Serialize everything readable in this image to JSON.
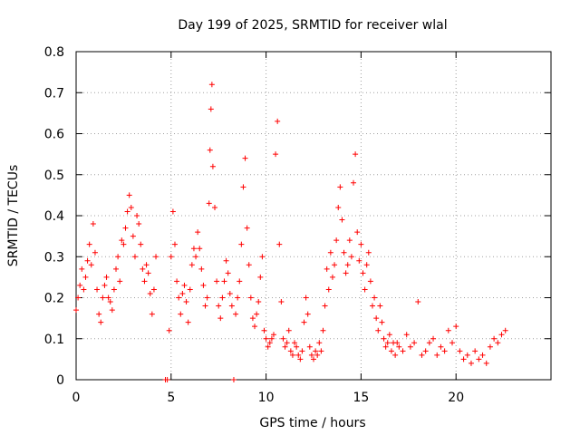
{
  "chart_data": {
    "type": "scatter",
    "title": "Day 199 of 2025, SRMTID for receiver wlal",
    "xlabel": "GPS time / hours",
    "ylabel": "SRMTID / TECUs",
    "xlim": [
      0,
      25
    ],
    "ylim": [
      0,
      0.8
    ],
    "xticks": [
      0,
      5,
      10,
      15,
      20
    ],
    "yticks": [
      0,
      0.1,
      0.2,
      0.3,
      0.4,
      0.5,
      0.6,
      0.7,
      0.8
    ],
    "x_tick_labels": [
      "0",
      "5",
      "10",
      "15",
      "20"
    ],
    "y_tick_labels": [
      "0",
      "0.1",
      "0.2",
      "0.3",
      "0.4",
      "0.5",
      "0.6",
      "0.7",
      "0.8"
    ],
    "grid": true,
    "marker": "+",
    "color": "#ff0000",
    "series": [
      {
        "name": "SRMTID",
        "x": [
          0.0,
          0.1,
          0.2,
          0.3,
          0.4,
          0.5,
          0.6,
          0.7,
          0.8,
          0.9,
          1.0,
          1.1,
          1.2,
          1.3,
          1.4,
          1.5,
          1.6,
          1.7,
          1.8,
          1.9,
          2.0,
          2.1,
          2.2,
          2.3,
          2.4,
          2.5,
          2.6,
          2.7,
          2.8,
          2.9,
          3.0,
          3.1,
          3.2,
          3.3,
          3.4,
          3.5,
          3.6,
          3.7,
          3.8,
          3.9,
          4.0,
          4.1,
          4.2,
          4.7,
          4.8,
          4.9,
          5.0,
          5.1,
          5.2,
          5.3,
          5.4,
          5.5,
          5.6,
          5.7,
          5.8,
          5.9,
          6.0,
          6.1,
          6.2,
          6.3,
          6.4,
          6.5,
          6.6,
          6.7,
          6.8,
          6.9,
          7.0,
          7.05,
          7.1,
          7.15,
          7.2,
          7.3,
          7.4,
          7.5,
          7.6,
          7.7,
          7.8,
          7.9,
          8.0,
          8.1,
          8.2,
          8.3,
          8.4,
          8.5,
          8.6,
          8.7,
          8.8,
          8.9,
          9.0,
          9.1,
          9.2,
          9.3,
          9.4,
          9.5,
          9.6,
          9.7,
          9.8,
          9.9,
          10.0,
          10.1,
          10.2,
          10.3,
          10.4,
          10.5,
          10.6,
          10.7,
          10.8,
          10.9,
          11.0,
          11.1,
          11.2,
          11.3,
          11.4,
          11.5,
          11.6,
          11.7,
          11.8,
          11.9,
          12.0,
          12.1,
          12.2,
          12.3,
          12.4,
          12.5,
          12.6,
          12.7,
          12.8,
          12.9,
          13.0,
          13.1,
          13.2,
          13.3,
          13.4,
          13.5,
          13.6,
          13.7,
          13.8,
          13.9,
          14.0,
          14.1,
          14.2,
          14.3,
          14.4,
          14.5,
          14.6,
          14.7,
          14.8,
          14.9,
          15.0,
          15.1,
          15.2,
          15.3,
          15.4,
          15.5,
          15.6,
          15.7,
          15.8,
          15.9,
          16.0,
          16.1,
          16.2,
          16.3,
          16.4,
          16.5,
          16.6,
          16.7,
          16.8,
          16.9,
          17.0,
          17.2,
          17.4,
          17.6,
          17.8,
          18.0,
          18.2,
          18.4,
          18.6,
          18.8,
          19.0,
          19.2,
          19.4,
          19.6,
          19.8,
          20.0,
          20.2,
          20.4,
          20.6,
          20.8,
          21.0,
          21.2,
          21.4,
          21.6,
          21.8,
          22.0,
          22.2,
          22.4,
          22.6
        ],
        "y": [
          0.17,
          0.2,
          0.23,
          0.27,
          0.22,
          0.25,
          0.29,
          0.33,
          0.28,
          0.38,
          0.31,
          0.22,
          0.16,
          0.14,
          0.2,
          0.23,
          0.25,
          0.2,
          0.19,
          0.17,
          0.22,
          0.27,
          0.3,
          0.24,
          0.34,
          0.33,
          0.37,
          0.41,
          0.45,
          0.42,
          0.35,
          0.3,
          0.4,
          0.38,
          0.33,
          0.27,
          0.24,
          0.28,
          0.26,
          0.21,
          0.16,
          0.22,
          0.3,
          0.0,
          0.0,
          0.12,
          0.3,
          0.41,
          0.33,
          0.24,
          0.2,
          0.16,
          0.21,
          0.23,
          0.19,
          0.14,
          0.22,
          0.28,
          0.32,
          0.3,
          0.36,
          0.32,
          0.27,
          0.23,
          0.18,
          0.2,
          0.43,
          0.56,
          0.66,
          0.72,
          0.52,
          0.42,
          0.24,
          0.18,
          0.15,
          0.2,
          0.24,
          0.29,
          0.26,
          0.21,
          0.18,
          0.0,
          0.16,
          0.2,
          0.24,
          0.33,
          0.47,
          0.54,
          0.37,
          0.28,
          0.2,
          0.15,
          0.13,
          0.16,
          0.19,
          0.25,
          0.3,
          0.12,
          0.1,
          0.08,
          0.09,
          0.1,
          0.11,
          0.55,
          0.63,
          0.33,
          0.19,
          0.1,
          0.08,
          0.09,
          0.12,
          0.07,
          0.06,
          0.09,
          0.08,
          0.06,
          0.05,
          0.07,
          0.14,
          0.2,
          0.16,
          0.08,
          0.06,
          0.05,
          0.07,
          0.06,
          0.09,
          0.07,
          0.12,
          0.18,
          0.27,
          0.22,
          0.31,
          0.25,
          0.28,
          0.34,
          0.42,
          0.47,
          0.39,
          0.31,
          0.26,
          0.28,
          0.34,
          0.3,
          0.48,
          0.55,
          0.36,
          0.29,
          0.33,
          0.26,
          0.22,
          0.28,
          0.31,
          0.24,
          0.18,
          0.2,
          0.15,
          0.12,
          0.18,
          0.14,
          0.1,
          0.08,
          0.09,
          0.11,
          0.07,
          0.09,
          0.06,
          0.09,
          0.08,
          0.07,
          0.11,
          0.08,
          0.09,
          0.19,
          0.06,
          0.07,
          0.09,
          0.1,
          0.06,
          0.08,
          0.07,
          0.12,
          0.09,
          0.13,
          0.07,
          0.05,
          0.06,
          0.04,
          0.07,
          0.05,
          0.06,
          0.04,
          0.08,
          0.1,
          0.09,
          0.11,
          0.12
        ]
      }
    ]
  }
}
